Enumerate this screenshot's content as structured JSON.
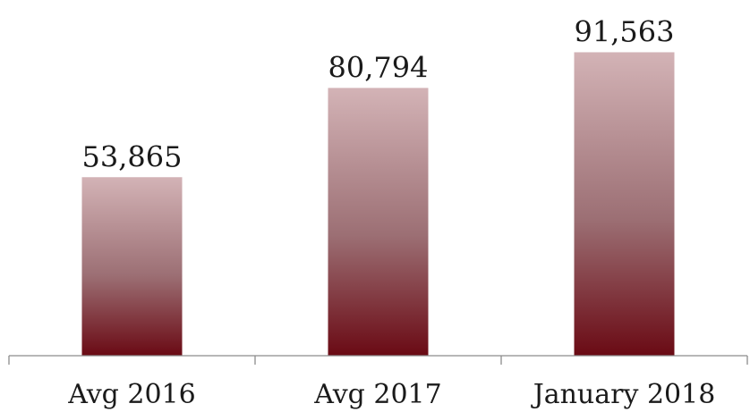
{
  "chart_data": {
    "type": "bar",
    "categories": [
      "Avg 2016",
      "Avg 2017",
      "January 2018"
    ],
    "values": [
      53865,
      80794,
      91563
    ],
    "value_labels": [
      "53,865",
      "80,794",
      "91,563"
    ],
    "title": "",
    "xlabel": "",
    "ylabel": "",
    "ylim": [
      0,
      96000
    ],
    "grid": false,
    "legend": "none"
  },
  "colors": {
    "bar_top": "#d3b3b6",
    "bar_mid": "#9c6f74",
    "bar_bottom": "#6a0a14",
    "axis": "#8c8c8c"
  }
}
